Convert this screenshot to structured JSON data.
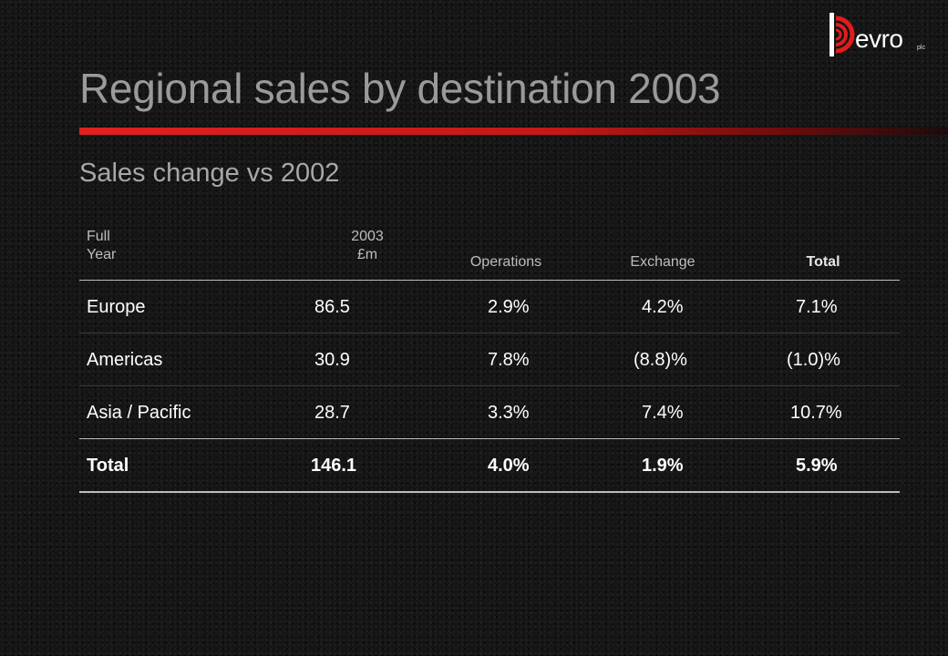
{
  "logo": {
    "text": "evro",
    "suffix": "plc",
    "mark_color": "#e01c1c"
  },
  "title": "Regional sales by destination 2003",
  "subtitle": "Sales change vs 2002",
  "accent_color": "#e02020",
  "table": {
    "headers": {
      "region_line1": "Full",
      "region_line2": "Year",
      "sales_line1": "2003",
      "sales_line2": "£m",
      "operations": "Operations",
      "exchange": "Exchange",
      "total": "Total"
    },
    "rows": [
      {
        "region": "Europe",
        "sales": "86.5",
        "operations": "2.9%",
        "exchange": "4.2%",
        "total": "7.1%"
      },
      {
        "region": "Americas",
        "sales": "30.9",
        "operations": "7.8%",
        "exchange": "(8.8)%",
        "total": "(1.0)%"
      },
      {
        "region": "Asia / Pacific",
        "sales": "28.7",
        "operations": "3.3%",
        "exchange": "7.4%",
        "total": "10.7%"
      }
    ],
    "total_row": {
      "region": "Total",
      "sales": "146.1",
      "operations": "4.0%",
      "exchange": "1.9%",
      "total": "5.9%"
    }
  }
}
